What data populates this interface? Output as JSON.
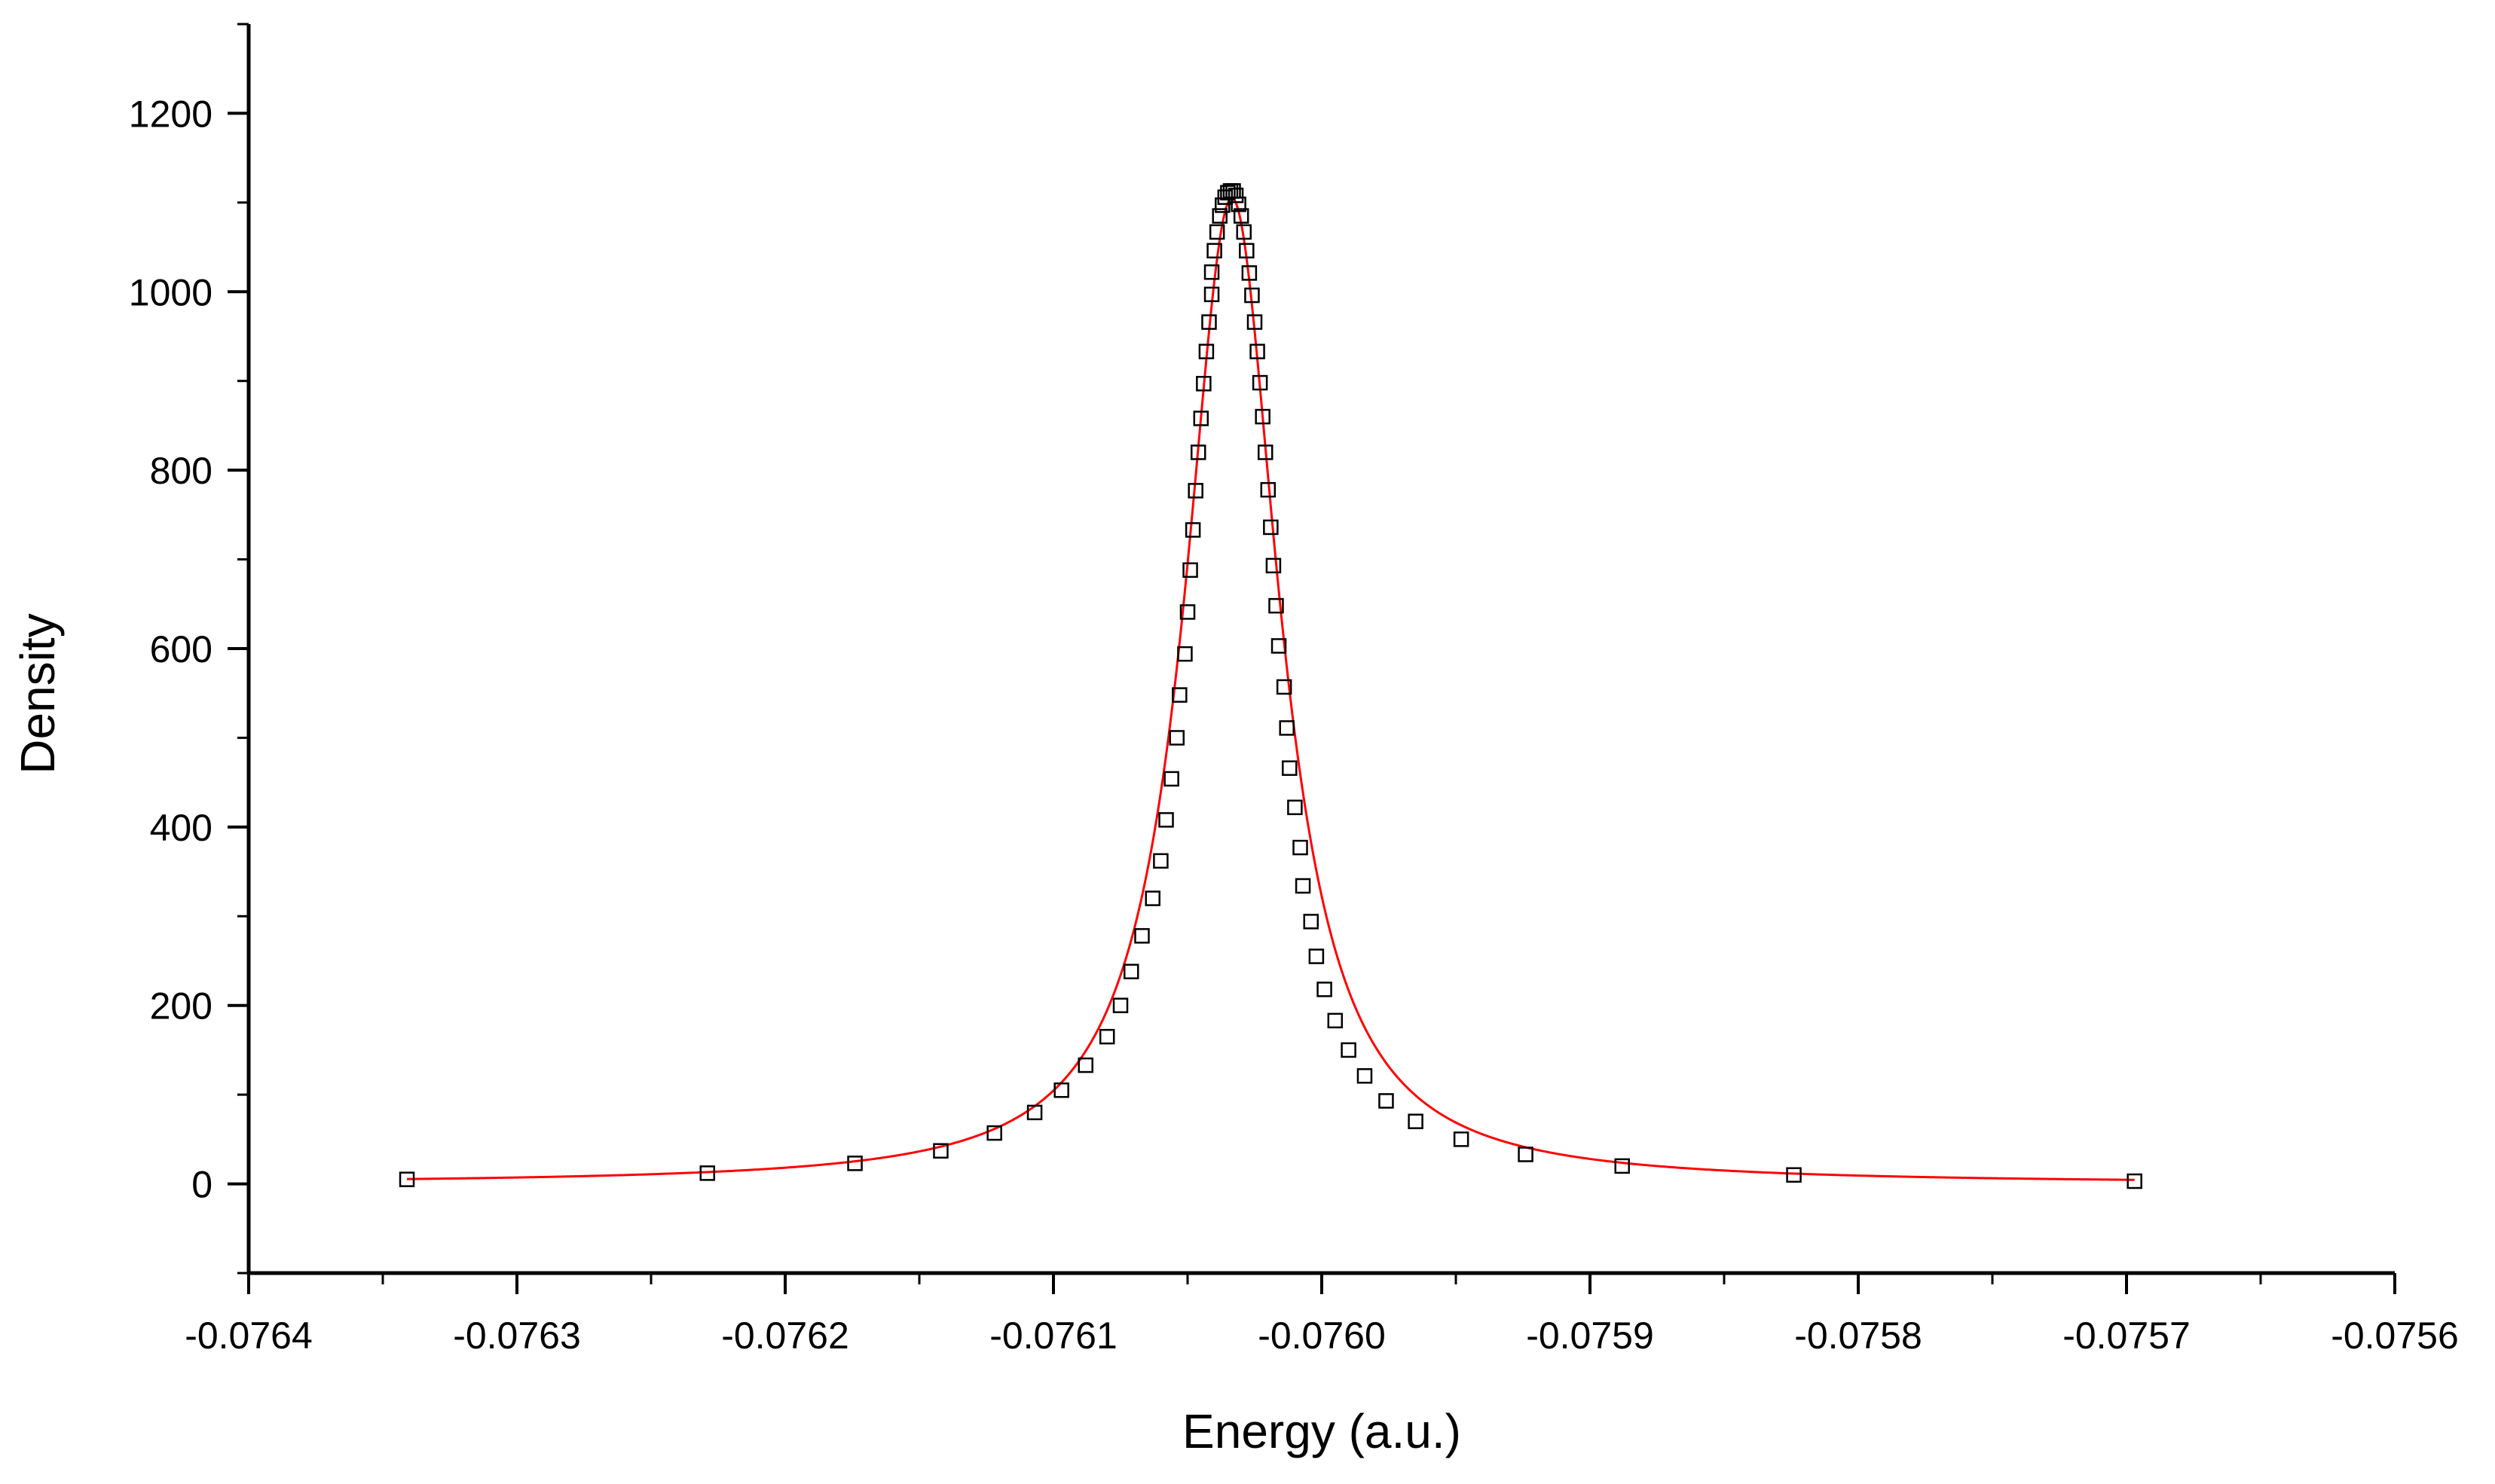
{
  "chart_data": {
    "type": "line",
    "title": "",
    "xlabel": "Energy (a.u.)",
    "ylabel": "Density",
    "xlim": [
      -0.0764,
      -0.0756
    ],
    "ylim": [
      -100,
      1300
    ],
    "x_ticks": [
      -0.0764,
      -0.0763,
      -0.0762,
      -0.0761,
      -0.076,
      -0.0759,
      -0.0758,
      -0.0757,
      -0.0756
    ],
    "x_tick_labels": [
      "-0.0764",
      "-0.0763",
      "-0.0762",
      "-0.0761",
      "-0.0760",
      "-0.0759",
      "-0.0758",
      "-0.0757",
      "-0.0756"
    ],
    "y_ticks": [
      0,
      200,
      400,
      600,
      800,
      1000,
      1200
    ],
    "y_tick_labels": [
      "0",
      "200",
      "400",
      "600",
      "800",
      "1000",
      "1200"
    ],
    "grid": false,
    "legend": "none",
    "series": [
      {
        "marker": "open-square",
        "color": "#000000",
        "points": [
          [
            -0.076341,
            5
          ],
          [
            -0.076229,
            12
          ],
          [
            -0.076174,
            23
          ],
          [
            -0.076142,
            37
          ],
          [
            -0.076122,
            57
          ],
          [
            -0.076107,
            80
          ],
          [
            -0.076097,
            105
          ],
          [
            -0.076088,
            133
          ],
          [
            -0.07608,
            165
          ],
          [
            -0.076075,
            200
          ],
          [
            -0.076071,
            238
          ],
          [
            -0.076067,
            278
          ],
          [
            -0.076063,
            320
          ],
          [
            -0.07606,
            362
          ],
          [
            -0.076058,
            408
          ],
          [
            -0.076056,
            454
          ],
          [
            -0.076054,
            500
          ],
          [
            -0.076053,
            548
          ],
          [
            -0.076051,
            594
          ],
          [
            -0.07605,
            641
          ],
          [
            -0.076049,
            688
          ],
          [
            -0.076048,
            733
          ],
          [
            -0.076047,
            777
          ],
          [
            -0.076046,
            820
          ],
          [
            -0.076045,
            858
          ],
          [
            -0.076044,
            897
          ],
          [
            -0.076043,
            933
          ],
          [
            -0.076042,
            966
          ],
          [
            -0.076041,
            997
          ],
          [
            -0.076041,
            1022
          ],
          [
            -0.07604,
            1046
          ],
          [
            -0.076039,
            1067
          ],
          [
            -0.076038,
            1085
          ],
          [
            -0.076037,
            1097
          ],
          [
            -0.076036,
            1106
          ],
          [
            -0.076035,
            1111
          ],
          [
            -0.076034,
            1113
          ],
          [
            -0.076033,
            1113
          ],
          [
            -0.076032,
            1108
          ],
          [
            -0.076031,
            1098
          ],
          [
            -0.07603,
            1085
          ],
          [
            -0.076029,
            1067
          ],
          [
            -0.076028,
            1046
          ],
          [
            -0.076027,
            1021
          ],
          [
            -0.076026,
            996
          ],
          [
            -0.076025,
            966
          ],
          [
            -0.076024,
            933
          ],
          [
            -0.076023,
            898
          ],
          [
            -0.076022,
            860
          ],
          [
            -0.076021,
            820
          ],
          [
            -0.07602,
            778
          ],
          [
            -0.076019,
            736
          ],
          [
            -0.076018,
            693
          ],
          [
            -0.076017,
            648
          ],
          [
            -0.076016,
            603
          ],
          [
            -0.076014,
            557
          ],
          [
            -0.076013,
            511
          ],
          [
            -0.076012,
            466
          ],
          [
            -0.07601,
            422
          ],
          [
            -0.076008,
            377
          ],
          [
            -0.076007,
            334
          ],
          [
            -0.076004,
            294
          ],
          [
            -0.076002,
            255
          ],
          [
            -0.075999,
            218
          ],
          [
            -0.075995,
            183
          ],
          [
            -0.07599,
            150
          ],
          [
            -0.075984,
            121
          ],
          [
            -0.075976,
            93
          ],
          [
            -0.075965,
            70
          ],
          [
            -0.075948,
            50
          ],
          [
            -0.075924,
            33
          ],
          [
            -0.075888,
            20
          ],
          [
            -0.075824,
            10
          ],
          [
            -0.075697,
            3
          ]
        ]
      },
      {
        "style": "line",
        "color": "#ff0000",
        "peak_x": -0.0760335,
        "peak_y": 1105,
        "half_width": 2.15e-05
      }
    ]
  }
}
